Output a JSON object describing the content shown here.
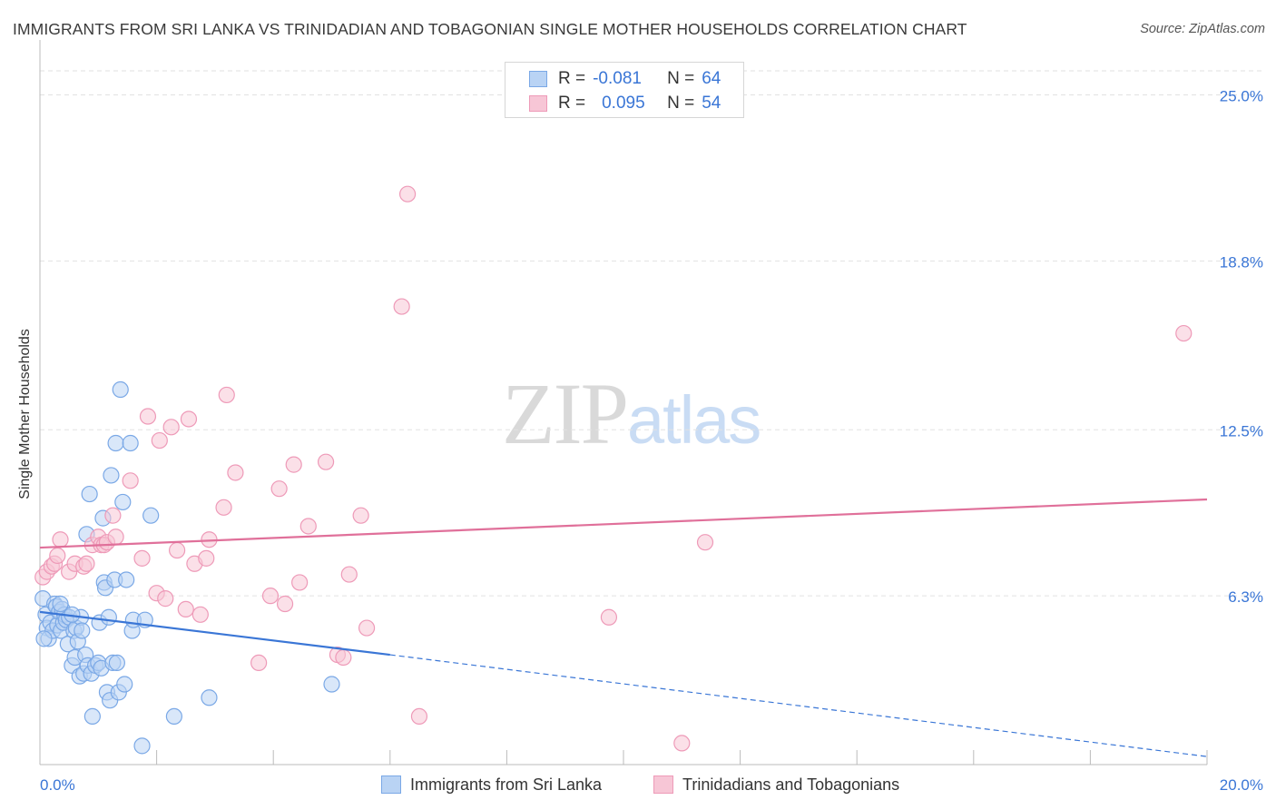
{
  "title": "IMMIGRANTS FROM SRI LANKA VS TRINIDADIAN AND TOBAGONIAN SINGLE MOTHER HOUSEHOLDS CORRELATION CHART",
  "source": "Source: ZipAtlas.com",
  "watermark": {
    "zip": "ZIP",
    "atlas": "atlas"
  },
  "legend": {
    "rows": [
      {
        "r_label": "R =",
        "r_value": "-0.081",
        "n_label": "N =",
        "n_value": "64"
      },
      {
        "r_label": "R =",
        "r_value": "0.095",
        "n_label": "N =",
        "n_value": "54"
      }
    ]
  },
  "bottom_legend": [
    "Immigrants from Sri Lanka",
    "Trinidadians and Tobagonians"
  ],
  "colors": {
    "blue": "#3a76d6",
    "blue_fill": "#b9d3f4",
    "blue_edge": "#7aa8e6",
    "pink": "#e0709a",
    "pink_fill": "#f7c6d6",
    "pink_edge": "#ee9ab8",
    "grid": "#e2e2e2",
    "tick_label": "#3a76d6"
  },
  "chart_data": {
    "type": "scatter",
    "ylabel": "Single Mother Households",
    "xlim": [
      0,
      20
    ],
    "ylim": [
      0,
      25.9
    ],
    "x_tick_labels": [
      "0.0%",
      "20.0%"
    ],
    "y_ticks": [
      6.3,
      12.5,
      18.8,
      25.0
    ],
    "y_tick_labels": [
      "6.3%",
      "12.5%",
      "18.8%",
      "25.0%"
    ],
    "series": [
      {
        "name": "Immigrants from Sri Lanka",
        "color": "blue",
        "r": -0.081,
        "n": 64,
        "trend": {
          "x0": 0.0,
          "y0": 5.7,
          "x1": 6.0,
          "y1": 4.1,
          "dash_x1": 20.0,
          "dash_y1": 0.3
        },
        "points": [
          [
            0.05,
            6.2
          ],
          [
            0.1,
            5.6
          ],
          [
            0.12,
            5.1
          ],
          [
            0.15,
            4.7
          ],
          [
            0.18,
            5.3
          ],
          [
            0.22,
            5.0
          ],
          [
            0.25,
            6.0
          ],
          [
            0.28,
            5.9
          ],
          [
            0.3,
            5.2
          ],
          [
            0.33,
            5.7
          ],
          [
            0.36,
            5.0
          ],
          [
            0.38,
            5.8
          ],
          [
            0.4,
            5.3
          ],
          [
            0.42,
            5.6
          ],
          [
            0.45,
            5.4
          ],
          [
            0.48,
            4.5
          ],
          [
            0.5,
            5.5
          ],
          [
            0.55,
            3.7
          ],
          [
            0.58,
            5.0
          ],
          [
            0.6,
            4.0
          ],
          [
            0.62,
            5.1
          ],
          [
            0.65,
            4.6
          ],
          [
            0.68,
            3.3
          ],
          [
            0.7,
            5.5
          ],
          [
            0.75,
            3.4
          ],
          [
            0.78,
            4.1
          ],
          [
            0.8,
            8.6
          ],
          [
            0.82,
            3.7
          ],
          [
            0.85,
            10.1
          ],
          [
            0.88,
            3.4
          ],
          [
            0.9,
            1.8
          ],
          [
            0.95,
            3.7
          ],
          [
            1.0,
            3.8
          ],
          [
            1.02,
            5.3
          ],
          [
            1.05,
            3.6
          ],
          [
            1.08,
            9.2
          ],
          [
            1.1,
            6.8
          ],
          [
            1.12,
            6.6
          ],
          [
            1.15,
            2.7
          ],
          [
            1.18,
            5.5
          ],
          [
            1.2,
            2.4
          ],
          [
            1.22,
            10.8
          ],
          [
            1.25,
            3.8
          ],
          [
            1.28,
            6.9
          ],
          [
            1.3,
            12.0
          ],
          [
            1.32,
            3.8
          ],
          [
            1.35,
            2.7
          ],
          [
            1.38,
            14.0
          ],
          [
            1.42,
            9.8
          ],
          [
            1.45,
            3.0
          ],
          [
            1.48,
            6.9
          ],
          [
            1.55,
            12.0
          ],
          [
            1.58,
            5.0
          ],
          [
            1.6,
            5.4
          ],
          [
            1.75,
            0.7
          ],
          [
            1.8,
            5.4
          ],
          [
            1.9,
            9.3
          ],
          [
            2.3,
            1.8
          ],
          [
            2.9,
            2.5
          ],
          [
            5.0,
            3.0
          ],
          [
            0.07,
            4.7
          ],
          [
            0.35,
            6.0
          ],
          [
            0.55,
            5.6
          ],
          [
            0.72,
            5.0
          ]
        ]
      },
      {
        "name": "Trinidadians and Tobagonians",
        "color": "pink",
        "r": 0.095,
        "n": 54,
        "trend": {
          "x0": 0.0,
          "y0": 8.1,
          "x1": 20.0,
          "y1": 9.9
        },
        "points": [
          [
            0.05,
            7.0
          ],
          [
            0.12,
            7.2
          ],
          [
            0.2,
            7.4
          ],
          [
            0.25,
            7.5
          ],
          [
            0.3,
            7.8
          ],
          [
            0.35,
            8.4
          ],
          [
            0.5,
            7.2
          ],
          [
            0.6,
            7.5
          ],
          [
            0.75,
            7.4
          ],
          [
            0.8,
            7.5
          ],
          [
            0.9,
            8.2
          ],
          [
            1.0,
            8.5
          ],
          [
            1.05,
            8.2
          ],
          [
            1.1,
            8.2
          ],
          [
            1.15,
            8.3
          ],
          [
            1.25,
            9.3
          ],
          [
            1.3,
            8.5
          ],
          [
            1.55,
            10.6
          ],
          [
            1.75,
            7.7
          ],
          [
            1.85,
            13.0
          ],
          [
            2.0,
            6.4
          ],
          [
            2.05,
            12.1
          ],
          [
            2.15,
            6.2
          ],
          [
            2.25,
            12.6
          ],
          [
            2.35,
            8.0
          ],
          [
            2.5,
            5.8
          ],
          [
            2.55,
            12.9
          ],
          [
            2.65,
            7.5
          ],
          [
            2.75,
            5.6
          ],
          [
            2.85,
            7.7
          ],
          [
            2.9,
            8.4
          ],
          [
            3.15,
            9.6
          ],
          [
            3.2,
            13.8
          ],
          [
            3.35,
            10.9
          ],
          [
            3.75,
            3.8
          ],
          [
            3.95,
            6.3
          ],
          [
            4.1,
            10.3
          ],
          [
            4.2,
            6.0
          ],
          [
            4.35,
            11.2
          ],
          [
            4.45,
            6.8
          ],
          [
            4.6,
            8.9
          ],
          [
            4.9,
            11.3
          ],
          [
            5.1,
            4.1
          ],
          [
            5.2,
            4.0
          ],
          [
            5.3,
            7.1
          ],
          [
            5.5,
            9.3
          ],
          [
            5.6,
            5.1
          ],
          [
            6.2,
            17.1
          ],
          [
            6.3,
            21.3
          ],
          [
            6.5,
            1.8
          ],
          [
            9.75,
            5.5
          ],
          [
            11.0,
            0.8
          ],
          [
            11.4,
            8.3
          ],
          [
            19.6,
            16.1
          ]
        ]
      }
    ]
  }
}
